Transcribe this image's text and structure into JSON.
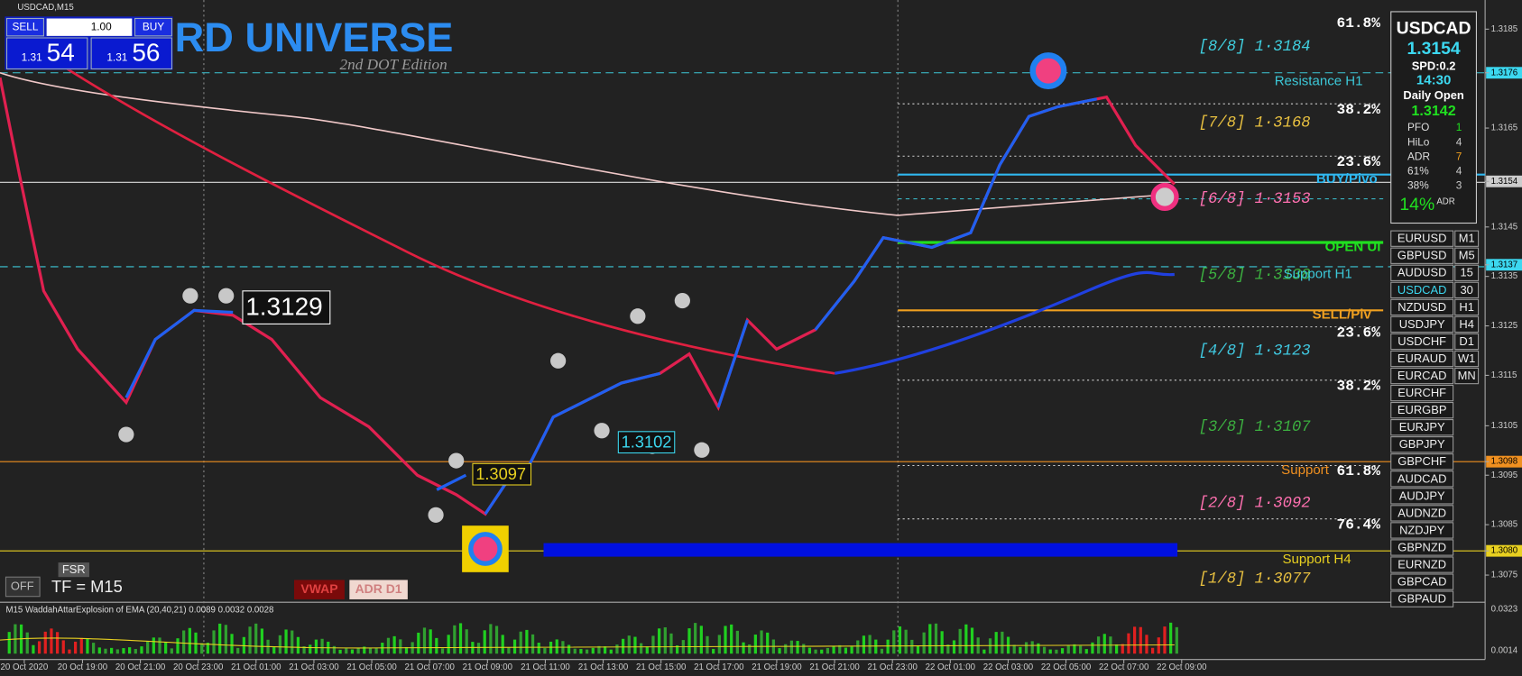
{
  "window_title": "USDCAD,M15",
  "trade_panel": {
    "sell": "SELL",
    "lot": "1.00",
    "buy": "BUY",
    "bid_prefix": "1.31",
    "bid": "54",
    "ask_prefix": "1.31",
    "ask": "56"
  },
  "logo": {
    "title": "RD UNIVERSE",
    "subtitle": "2nd DOT Edition"
  },
  "info_panel": {
    "symbol": "USDCAD",
    "price": "1.3154",
    "spread": "SPD:0.2",
    "time": "14:30",
    "daily_open_label": "Daily Open",
    "daily_open": "1.3142",
    "rows": [
      [
        "PFO",
        "1"
      ],
      [
        "HiLo",
        "4"
      ],
      [
        "ADR",
        "7"
      ],
      [
        "61%",
        "4"
      ],
      [
        "38%",
        "3"
      ]
    ],
    "adr_pct": "14%",
    "adr_label": "ADR"
  },
  "murrey_levels": [
    "[8/8] 1·3184",
    "[7/8] 1·3168",
    "[6/8] 1·3153",
    "[5/8] 1·3138",
    "[4/8] 1·3123",
    "[3/8] 1·3107",
    "[2/8] 1·3092",
    "[1/8] 1·3077"
  ],
  "fib_levels": [
    "61.8%",
    "38.2%",
    "23.6%",
    "23.6%",
    "38.2%",
    "61.8%",
    "76.4%"
  ],
  "level_labels": [
    "Resistance H1",
    "BUY/Pivo",
    "OPEN UI",
    "Support H1",
    "SELL/Piv",
    "Support",
    "Support H4"
  ],
  "price_callouts": [
    "1.3129",
    "1.3102",
    "1.3097"
  ],
  "symbols": [
    "EURUSD",
    "GBPUSD",
    "AUDUSD",
    "USDCAD",
    "NZDUSD",
    "USDJPY",
    "USDCHF",
    "EURAUD",
    "EURCAD",
    "EURCHF",
    "EURGBP",
    "EURJPY",
    "GBPJPY",
    "GBPCHF",
    "AUDCAD",
    "AUDJPY",
    "AUDNZD",
    "NZDJPY",
    "GBPNZD",
    "EURNZD",
    "GBPCAD",
    "GBPAUD"
  ],
  "timeframes": [
    "M1",
    "M5",
    "15",
    "30",
    "H1",
    "H4",
    "D1",
    "W1",
    "MN"
  ],
  "buttons": {
    "fsr": "FSR",
    "off": "OFF",
    "tf": "TF = M15",
    "vwap": "VWAP",
    "adr": "ADR D1"
  },
  "indicator_title": "M15  WaddahAttarExplosion of EMA (20,40,21) 0.0089 0.0032 0.0028",
  "price_axis": [
    "1.3185",
    "1.3176",
    "1.3165",
    "1.3154",
    "1.3145",
    "1.3137",
    "1.3135",
    "1.3125",
    "1.3115",
    "1.3105",
    "1.3098",
    "1.3095",
    "1.3085",
    "1.3080",
    "1.3075"
  ],
  "indicator_axis": [
    "0.0323",
    "0.0014"
  ],
  "time_axis": [
    "20 Oct 2020",
    "20 Oct 19:00",
    "20 Oct 21:00",
    "20 Oct 23:00",
    "21 Oct 01:00",
    "21 Oct 03:00",
    "21 Oct 05:00",
    "21 Oct 07:00",
    "21 Oct 09:00",
    "21 Oct 11:00",
    "21 Oct 13:00",
    "21 Oct 15:00",
    "21 Oct 17:00",
    "21 Oct 19:00",
    "21 Oct 21:00",
    "21 Oct 23:00",
    "22 Oct 01:00",
    "22 Oct 03:00",
    "22 Oct 05:00",
    "22 Oct 07:00",
    "22 Oct 09:00"
  ]
}
